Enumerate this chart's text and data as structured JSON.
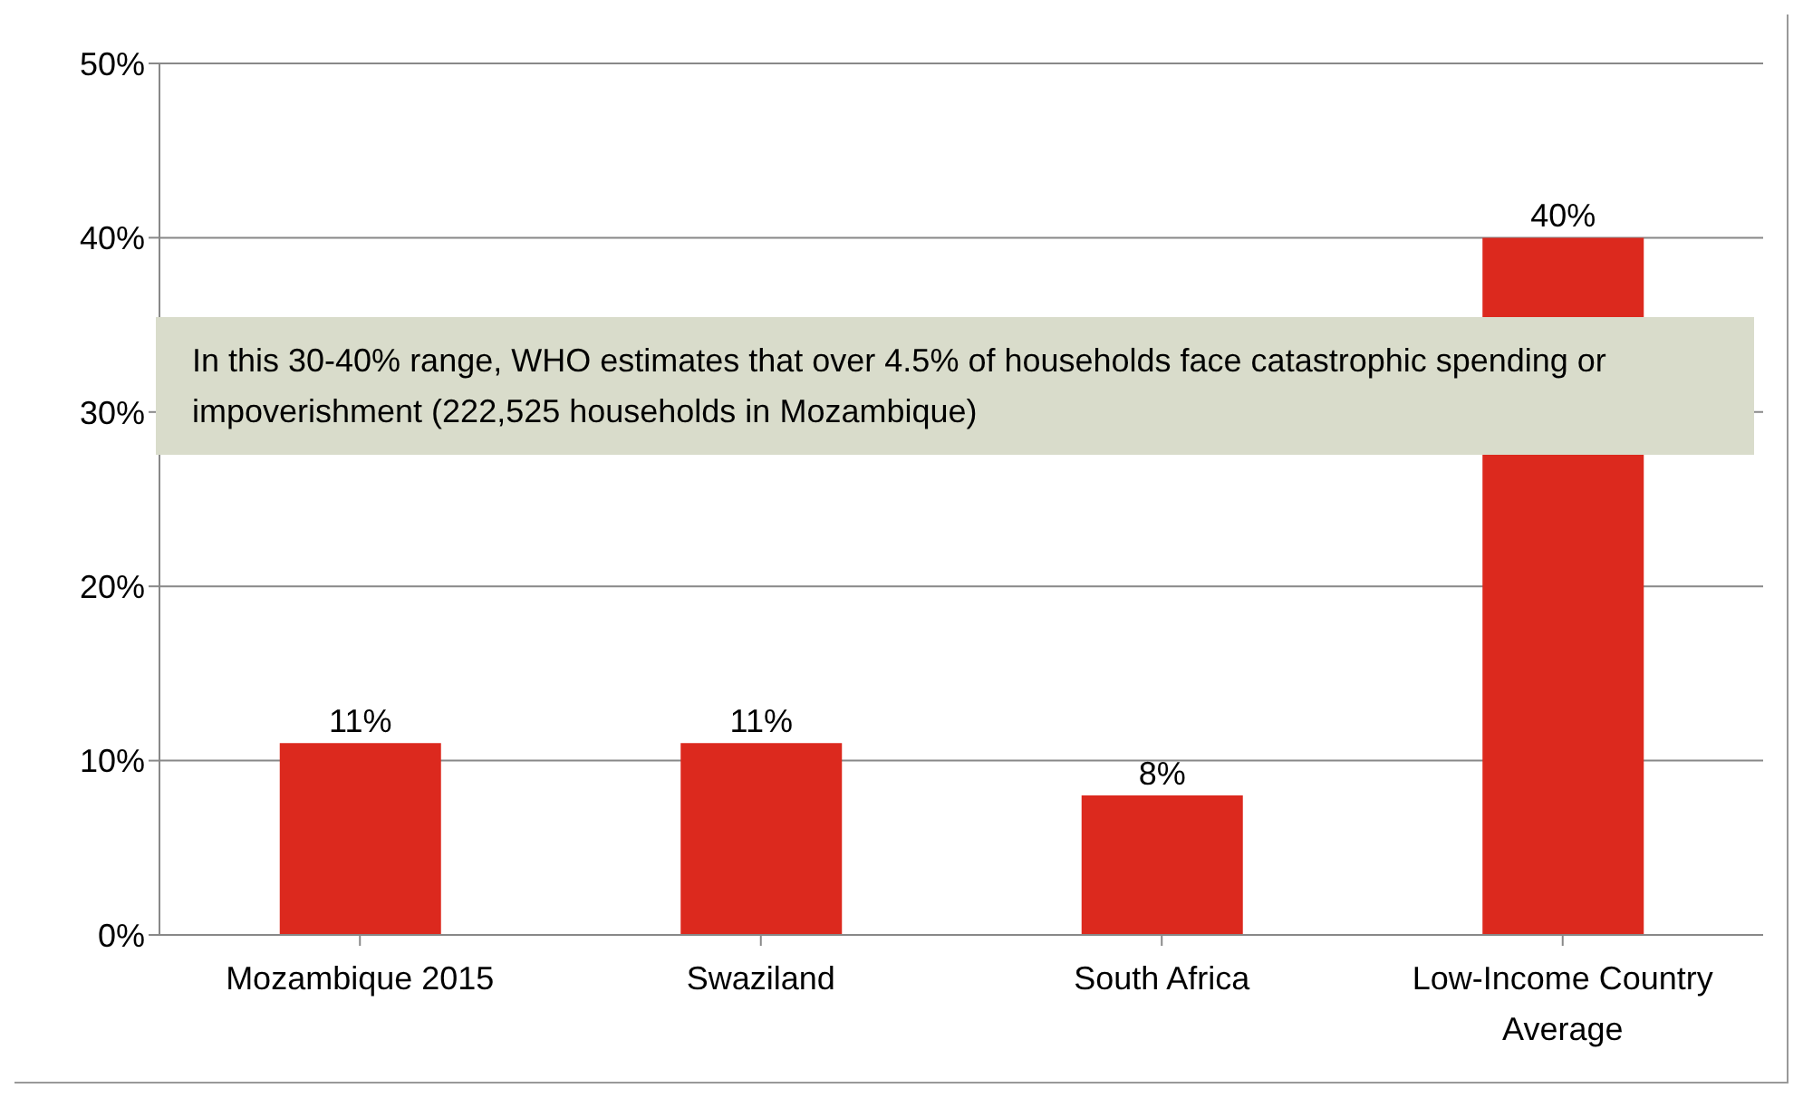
{
  "chart_data": {
    "type": "bar",
    "categories": [
      "Mozambique 2015",
      "Swaziland",
      "South Africa",
      "Low-Income Country Average"
    ],
    "values": [
      11,
      11,
      8,
      40
    ],
    "color": "#dc291e",
    "value_labels": [
      "11%",
      "11%",
      "8%",
      "40%"
    ],
    "ylim": [
      0,
      50
    ],
    "yticks": [
      {
        "value": 0,
        "label": "0%"
      },
      {
        "value": 10,
        "label": "10%"
      },
      {
        "value": 20,
        "label": "20%"
      },
      {
        "value": 30,
        "label": "30%"
      },
      {
        "value": 40,
        "label": "40%"
      },
      {
        "value": 50,
        "label": "50%"
      }
    ],
    "grid": "y",
    "annotations": [
      "In this 30-40% range, WHO estimates that over 4.5% of households face catastrophic spending or impoverishment (222,525 households in Mozambique)"
    ]
  }
}
